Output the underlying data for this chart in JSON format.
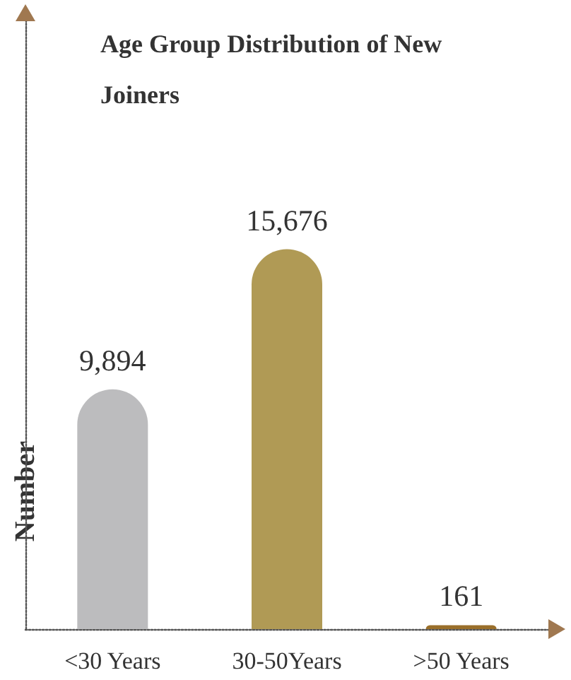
{
  "chart_data": {
    "type": "bar",
    "title": "Age Group Distribution of New Joiners",
    "ylabel": "Number",
    "categories": [
      "<30 Years",
      "30-50Years",
      ">50 Years"
    ],
    "values": [
      9894,
      15676,
      161
    ],
    "colors": [
      "#bcbcbe",
      "#b09a55",
      "#9a6f2a"
    ],
    "value_labels": [
      "9,894",
      "15,676",
      "161"
    ],
    "tick_labels": "x",
    "grid": false
  }
}
